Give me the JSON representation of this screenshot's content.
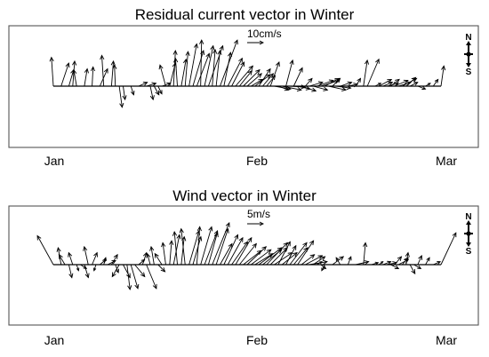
{
  "chart_data": [
    {
      "type": "vector",
      "title": "Residual current vector in Winter",
      "x_ticks": [
        "Jan",
        "Feb",
        "Mar"
      ],
      "scale_label": "10cm/s",
      "compass": {
        "north": "N",
        "south": "S"
      },
      "vectors": [
        [
          0.0,
          -0.4,
          6.0
        ],
        [
          0.02,
          1.6,
          4.8
        ],
        [
          0.04,
          1.0,
          3.4
        ],
        [
          0.05,
          0.4,
          5.2
        ],
        [
          0.06,
          -0.6,
          3.4
        ],
        [
          0.08,
          0.6,
          3.6
        ],
        [
          0.1,
          0.2,
          4.0
        ],
        [
          0.12,
          1.6,
          3.6
        ],
        [
          0.13,
          -0.4,
          6.4
        ],
        [
          0.15,
          0.4,
          5.2
        ],
        [
          0.16,
          -0.2,
          4.4
        ],
        [
          0.17,
          0.6,
          -4.4
        ],
        [
          0.18,
          0.4,
          -2.8
        ],
        [
          0.2,
          0.6,
          -1.8
        ],
        [
          0.22,
          1.8,
          0.8
        ],
        [
          0.24,
          2.0,
          0.6
        ],
        [
          0.26,
          1.0,
          -1.8
        ],
        [
          0.27,
          0.8,
          -1.6
        ],
        [
          0.28,
          1.8,
          0.6
        ],
        [
          0.25,
          0.6,
          -2.8
        ],
        [
          0.29,
          -1.2,
          4.4
        ],
        [
          0.3,
          1.2,
          4.8
        ],
        [
          0.31,
          0.4,
          7.4
        ],
        [
          0.32,
          -0.4,
          5.8
        ],
        [
          0.33,
          1.0,
          5.6
        ],
        [
          0.34,
          0.6,
          7.2
        ],
        [
          0.35,
          1.6,
          8.8
        ],
        [
          0.36,
          2.2,
          7.4
        ],
        [
          0.37,
          2.6,
          6.8
        ],
        [
          0.38,
          0.2,
          9.6
        ],
        [
          0.39,
          1.8,
          8.4
        ],
        [
          0.4,
          3.0,
          8.4
        ],
        [
          0.41,
          0.6,
          7.6
        ],
        [
          0.42,
          0.8,
          7.4
        ],
        [
          0.43,
          3.6,
          9.6
        ],
        [
          0.44,
          1.4,
          7.0
        ],
        [
          0.45,
          3.0,
          5.8
        ],
        [
          0.46,
          2.6,
          5.0
        ],
        [
          0.47,
          3.6,
          4.2
        ],
        [
          0.48,
          2.6,
          3.2
        ],
        [
          0.49,
          3.4,
          3.4
        ],
        [
          0.5,
          3.0,
          2.6
        ],
        [
          0.51,
          2.4,
          1.4
        ],
        [
          0.52,
          3.2,
          2.4
        ],
        [
          0.53,
          2.4,
          3.6
        ],
        [
          0.54,
          2.2,
          2.6
        ],
        [
          0.55,
          1.8,
          2.2
        ],
        [
          0.56,
          1.8,
          5.0
        ],
        [
          0.57,
          3.4,
          -0.6
        ],
        [
          0.58,
          2.2,
          -0.8
        ],
        [
          0.59,
          4.0,
          -0.8
        ],
        [
          0.6,
          1.4,
          5.4
        ],
        [
          0.61,
          3.2,
          -0.2
        ],
        [
          0.62,
          1.8,
          3.8
        ],
        [
          0.63,
          2.6,
          -0.6
        ],
        [
          0.64,
          3.0,
          -1.0
        ],
        [
          0.65,
          1.4,
          1.6
        ],
        [
          0.66,
          2.8,
          0.8
        ],
        [
          0.67,
          3.0,
          -0.8
        ],
        [
          0.68,
          3.4,
          1.2
        ],
        [
          0.69,
          3.8,
          1.2
        ],
        [
          0.7,
          3.0,
          1.6
        ],
        [
          0.71,
          3.6,
          -0.8
        ],
        [
          0.72,
          1.6,
          1.6
        ],
        [
          0.73,
          3.0,
          -0.4
        ],
        [
          0.74,
          2.4,
          0.8
        ],
        [
          0.76,
          2.0,
          0.4
        ],
        [
          0.78,
          1.0,
          1.6
        ],
        [
          0.8,
          0.8,
          5.4
        ],
        [
          0.81,
          2.4,
          5.6
        ],
        [
          0.83,
          1.2,
          0.6
        ],
        [
          0.84,
          2.6,
          1.4
        ],
        [
          0.85,
          2.0,
          0.8
        ],
        [
          0.86,
          2.4,
          0.6
        ],
        [
          0.87,
          1.8,
          1.4
        ],
        [
          0.88,
          2.8,
          1.2
        ],
        [
          0.89,
          2.6,
          0.8
        ],
        [
          0.9,
          3.0,
          1.6
        ],
        [
          0.91,
          2.0,
          1.8
        ],
        [
          0.92,
          1.6,
          0.8
        ],
        [
          0.94,
          1.6,
          -0.6
        ],
        [
          0.96,
          1.0,
          0.6
        ],
        [
          0.98,
          1.0,
          1.4
        ],
        [
          1.0,
          0.6,
          4.2
        ]
      ]
    },
    {
      "type": "vector",
      "title": "Wind vector in Winter",
      "x_ticks": [
        "Jan",
        "Feb",
        "Mar"
      ],
      "scale_label": "5m/s",
      "compass": {
        "north": "N",
        "south": "S"
      },
      "vectors": [
        [
          0.0,
          -3.2,
          5.8
        ],
        [
          0.02,
          -0.6,
          3.4
        ],
        [
          0.03,
          -1.2,
          2.0
        ],
        [
          0.04,
          0.6,
          -2.6
        ],
        [
          0.05,
          -0.8,
          2.4
        ],
        [
          0.06,
          0.4,
          -1.2
        ],
        [
          0.07,
          1.2,
          -0.8
        ],
        [
          0.08,
          0.8,
          -2.6
        ],
        [
          0.09,
          -0.8,
          3.6
        ],
        [
          0.1,
          1.0,
          2.4
        ],
        [
          0.11,
          -0.4,
          -1.2
        ],
        [
          0.12,
          1.2,
          1.0
        ],
        [
          0.13,
          0.4,
          1.4
        ],
        [
          0.14,
          1.6,
          0.8
        ],
        [
          0.15,
          1.2,
          2.0
        ],
        [
          0.16,
          0.6,
          -1.6
        ],
        [
          0.17,
          -1.4,
          -2.4
        ],
        [
          0.18,
          1.4,
          -2.6
        ],
        [
          0.19,
          0.6,
          -5.0
        ],
        [
          0.2,
          1.4,
          -4.8
        ],
        [
          0.21,
          2.0,
          -2.4
        ],
        [
          0.22,
          1.2,
          1.0
        ],
        [
          0.23,
          0.8,
          2.4
        ],
        [
          0.24,
          2.0,
          -4.8
        ],
        [
          0.25,
          -0.6,
          2.2
        ],
        [
          0.26,
          -0.6,
          3.6
        ],
        [
          0.27,
          1.4,
          -1.4
        ],
        [
          0.28,
          -1.4,
          2.2
        ],
        [
          0.29,
          -0.6,
          4.4
        ],
        [
          0.3,
          0.4,
          4.8
        ],
        [
          0.31,
          1.2,
          6.0
        ],
        [
          0.32,
          -0.6,
          6.6
        ],
        [
          0.33,
          0.6,
          5.6
        ],
        [
          0.34,
          -0.8,
          7.2
        ],
        [
          0.35,
          2.0,
          6.8
        ],
        [
          0.36,
          1.6,
          5.6
        ],
        [
          0.37,
          0.6,
          7.6
        ],
        [
          0.38,
          2.2,
          7.6
        ],
        [
          0.39,
          2.6,
          6.8
        ],
        [
          0.4,
          1.8,
          6.4
        ],
        [
          0.41,
          3.4,
          8.4
        ],
        [
          0.42,
          2.4,
          7.2
        ],
        [
          0.43,
          2.4,
          4.2
        ],
        [
          0.44,
          2.8,
          6.0
        ],
        [
          0.45,
          3.0,
          5.4
        ],
        [
          0.46,
          3.2,
          4.6
        ],
        [
          0.47,
          3.2,
          5.4
        ],
        [
          0.48,
          3.4,
          4.2
        ],
        [
          0.49,
          3.6,
          2.8
        ],
        [
          0.5,
          3.8,
          3.6
        ],
        [
          0.51,
          4.0,
          3.0
        ],
        [
          0.52,
          3.6,
          2.2
        ],
        [
          0.53,
          4.6,
          3.4
        ],
        [
          0.54,
          3.8,
          3.0
        ],
        [
          0.55,
          4.2,
          4.4
        ],
        [
          0.56,
          3.4,
          3.4
        ],
        [
          0.57,
          3.6,
          2.4
        ],
        [
          0.58,
          2.4,
          4.6
        ],
        [
          0.59,
          3.0,
          2.4
        ],
        [
          0.6,
          2.0,
          3.8
        ],
        [
          0.61,
          3.4,
          4.4
        ],
        [
          0.62,
          2.8,
          3.4
        ],
        [
          0.63,
          3.2,
          4.8
        ],
        [
          0.64,
          2.6,
          2.0
        ],
        [
          0.65,
          3.4,
          1.8
        ],
        [
          0.66,
          3.6,
          0.6
        ],
        [
          0.67,
          2.4,
          1.6
        ],
        [
          0.68,
          1.0,
          0.6
        ],
        [
          0.69,
          1.0,
          -0.8
        ],
        [
          0.7,
          -0.6,
          -1.2
        ],
        [
          0.72,
          2.2,
          1.6
        ],
        [
          0.74,
          -0.8,
          1.4
        ],
        [
          0.76,
          0.6,
          1.6
        ],
        [
          0.78,
          2.6,
          0.6
        ],
        [
          0.8,
          0.4,
          4.4
        ],
        [
          0.82,
          1.4,
          0.4
        ],
        [
          0.84,
          0.8,
          0.6
        ],
        [
          0.85,
          1.6,
          0.6
        ],
        [
          0.86,
          2.0,
          0.4
        ],
        [
          0.87,
          1.6,
          -0.8
        ],
        [
          0.88,
          1.4,
          1.6
        ],
        [
          0.89,
          2.0,
          1.0
        ],
        [
          0.9,
          1.2,
          1.4
        ],
        [
          0.91,
          0.4,
          2.4
        ],
        [
          0.92,
          1.0,
          -1.8
        ],
        [
          0.93,
          1.4,
          -0.8
        ],
        [
          0.94,
          0.8,
          1.8
        ],
        [
          0.96,
          0.8,
          1.4
        ],
        [
          0.98,
          1.4,
          0.6
        ],
        [
          1.0,
          3.0,
          6.4
        ]
      ]
    }
  ]
}
